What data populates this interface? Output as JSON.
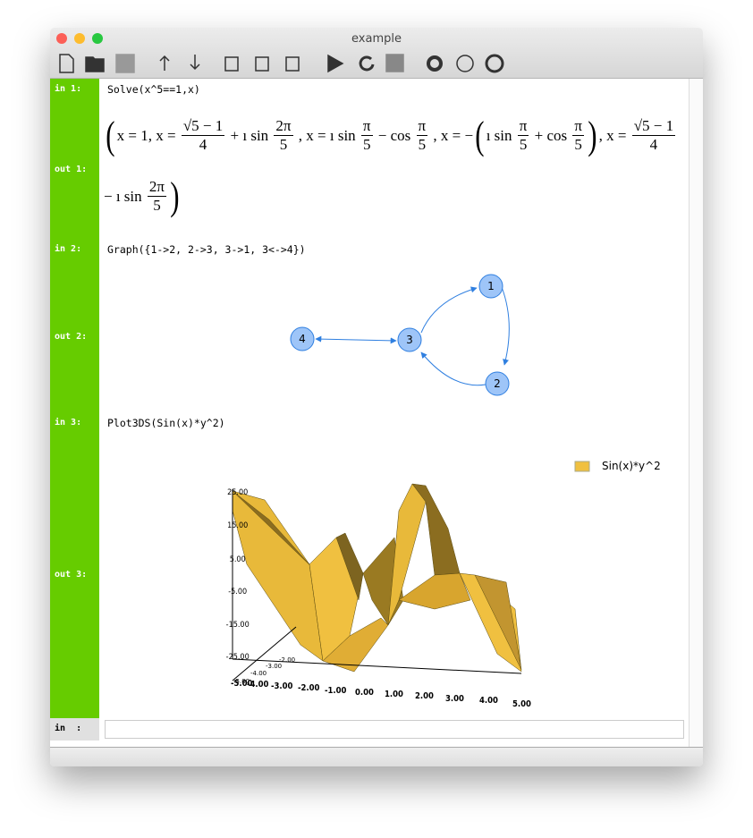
{
  "window": {
    "title": "example"
  },
  "notebook": {
    "cells": [
      {
        "in_label": "in 1:",
        "input": "Solve(x^5==1,x)",
        "out_label": "out 1:"
      },
      {
        "in_label": "in 2:",
        "input": "Graph({1->2, 2->3, 3->1, 3<->4})",
        "out_label": "out 2:"
      },
      {
        "in_label": "in 3:",
        "input": "Plot3DS(Sin(x)*y^2)",
        "out_label": "out 3:"
      }
    ],
    "prompt_label": "in  :"
  },
  "outputs": {
    "math": {
      "lines": [
        [
          {
            "paren": "("
          },
          {
            "text": "x = 1, x = "
          },
          {
            "num": "√5 − 1",
            "den": "4"
          },
          {
            "text": " + ı sin "
          },
          {
            "num": "2π",
            "den": "5"
          },
          {
            "text": " , x = ı sin "
          },
          {
            "num": "π",
            "den": "5"
          },
          {
            "text": " − cos "
          },
          {
            "num": "π",
            "den": "5"
          },
          {
            "text": " , x = −"
          },
          {
            "paren": "("
          },
          {
            "text": "ı sin "
          },
          {
            "num": "π",
            "den": "5"
          },
          {
            "text": " + cos "
          },
          {
            "num": "π",
            "den": "5"
          },
          {
            "paren": ")"
          },
          {
            "text": ", x = "
          },
          {
            "num": "√5 − 1",
            "den": "4"
          }
        ],
        [
          {
            "text": "− ı sin "
          },
          {
            "num": "2π",
            "den": "5"
          },
          {
            "paren": ")"
          }
        ]
      ]
    },
    "graph": {
      "nodes": [
        "1",
        "2",
        "3",
        "4"
      ]
    },
    "plot": {
      "legend": "Sin(x)*y^2",
      "z_ticks": [
        "25.00",
        "15.00",
        "5.00",
        "-5.00",
        "-15.00",
        "-25.00"
      ],
      "y_ticks": [
        "-2.00",
        "-3.00",
        "-4.00",
        "-5.00"
      ],
      "x_ticks": [
        "-5.00",
        "-4.00",
        "-3.00",
        "-2.00",
        "-1.00",
        "0.00",
        "1.00",
        "2.00",
        "3.00",
        "4.00",
        "5.00"
      ]
    }
  }
}
